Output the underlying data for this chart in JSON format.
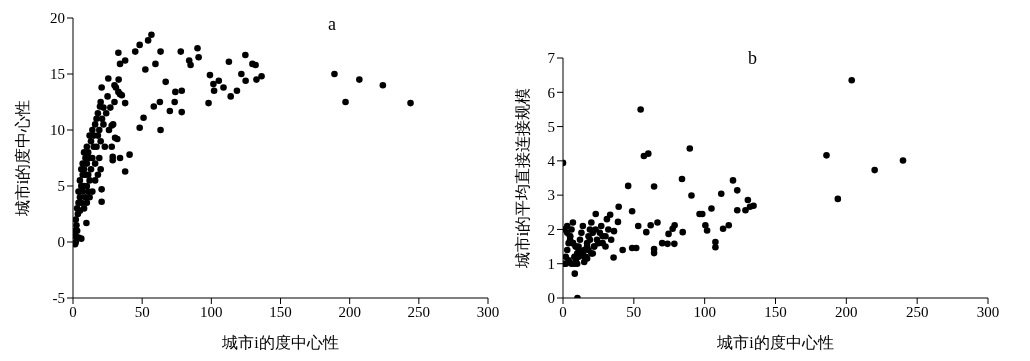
{
  "chart_data": [
    {
      "type": "scatter",
      "title": "a",
      "xlabel": "城市i的度中心性",
      "ylabel": "城市i的度中心性",
      "xlim": [
        0,
        300
      ],
      "xticks": [
        0,
        50,
        100,
        150,
        200,
        250,
        300
      ],
      "ylim": [
        -5,
        20
      ],
      "yticks": [
        -5,
        0,
        5,
        10,
        15,
        20
      ],
      "marker": "circle",
      "color": "#000000",
      "x": [
        189,
        207,
        224,
        197,
        244,
        56.7,
        54.3,
        48.2,
        45,
        32.8,
        63.3,
        77.9,
        90,
        90.8,
        84,
        85,
        59.6,
        52.3,
        37.7,
        34,
        112.7,
        124.6,
        129.7,
        132,
        121.7,
        124.8,
        132.6,
        136.3,
        99,
        101.5,
        105.4,
        108.8,
        102,
        114,
        118.5,
        98,
        67,
        74,
        78.6,
        73.5,
        78.6,
        70,
        62.8,
        58.4,
        51,
        48.2,
        63.3,
        37.7,
        40.9,
        37.7,
        34,
        28.7,
        28.7,
        30.4,
        28,
        35.3,
        32.8,
        30,
        25.5,
        20.7,
        19.5,
        20.7,
        20.7,
        9.7,
        1.5,
        2,
        4,
        6,
        1,
        2,
        2.5,
        3,
        3.5,
        4,
        4,
        5,
        5,
        5,
        6,
        6,
        6,
        7,
        7,
        7,
        8,
        8,
        8,
        9,
        9,
        9,
        10,
        10,
        10,
        11,
        11,
        11,
        12,
        12,
        12,
        13,
        13,
        14,
        14,
        15,
        15,
        16,
        16,
        17,
        17,
        18,
        18,
        19,
        19,
        20,
        20,
        21,
        22,
        22,
        23,
        24,
        25,
        26,
        27,
        28,
        29,
        30,
        32,
        33,
        31,
        34,
        8,
        10,
        12,
        14,
        16,
        18,
        20,
        3,
        2
      ],
      "values": [
        15.0,
        14.5,
        14.0,
        12.5,
        12.4,
        18.5,
        18.0,
        17.6,
        17.0,
        16.9,
        17.0,
        17.0,
        17.3,
        16.5,
        16.2,
        15.8,
        15.9,
        15.4,
        16.2,
        15.9,
        16.1,
        16.7,
        15.9,
        15.8,
        15.0,
        14.4,
        14.5,
        14.8,
        14.9,
        14.1,
        14.4,
        13.8,
        13.5,
        13.0,
        13.5,
        12.4,
        14.3,
        13.4,
        13.5,
        12.5,
        11.6,
        11.7,
        12.5,
        12.1,
        11.1,
        10.2,
        10.0,
        12.4,
        7.8,
        6.3,
        7.5,
        7.3,
        7.6,
        9.3,
        10.4,
        13.1,
        13.4,
        14.0,
        14.6,
        13.8,
        12.1,
        4.7,
        3.6,
        1.7,
        -0.2,
        0.5,
        0.4,
        0.3,
        1,
        2,
        1.5,
        3,
        2.5,
        3.5,
        4.5,
        2.8,
        4,
        5.5,
        3.5,
        5,
        6.5,
        4.5,
        6,
        7,
        5,
        6.5,
        8,
        4,
        6,
        7.5,
        5,
        7,
        8.5,
        4.5,
        6,
        8,
        5.5,
        7.5,
        9.5,
        6.5,
        9,
        7.5,
        10,
        8.5,
        9.5,
        7,
        10.5,
        8.5,
        11,
        9.5,
        11.5,
        7.5,
        10,
        9,
        12.5,
        11,
        10.5,
        12,
        8.5,
        11.5,
        13,
        10,
        12,
        8.5,
        10.5,
        12.5,
        9.2,
        14.5,
        13.8,
        13.2,
        3,
        3.5,
        4,
        4.5,
        5.5,
        6,
        6.5,
        1,
        0
      ]
    },
    {
      "type": "scatter",
      "title": "b",
      "xlabel": "城市i的度中心性",
      "ylabel": "城市i的平均直接连接规模",
      "xlim": [
        0,
        300
      ],
      "xticks": [
        0,
        50,
        100,
        150,
        200,
        250,
        300
      ],
      "ylim": [
        0,
        7
      ],
      "yticks": [
        0,
        1,
        2,
        3,
        4,
        5,
        6,
        7
      ],
      "marker": "circle",
      "color": "#000000",
      "x": [
        203.8,
        186,
        240,
        220,
        194,
        54.8,
        57.1,
        60.2,
        89.5,
        46,
        64.3,
        84,
        90.7,
        120,
        123,
        111.7,
        130.5,
        123,
        128.8,
        132,
        134.5,
        104.8,
        98.3,
        96.4,
        100.5,
        101.7,
        107.6,
        107.6,
        113,
        117,
        78.8,
        77.4,
        74.5,
        84.5,
        70,
        73.8,
        78.6,
        66.7,
        61.9,
        58.8,
        53.1,
        48.8,
        48.8,
        51.7,
        64.3,
        64.3,
        39.3,
        38.8,
        35.7,
        42.1,
        23.1,
        33.3,
        8.3,
        10.2,
        0,
        1,
        2,
        3,
        4,
        5,
        6,
        7,
        8,
        9,
        10,
        11,
        12,
        13,
        14,
        15,
        17,
        18,
        19,
        20,
        21,
        22,
        24,
        26,
        28,
        30,
        32,
        34,
        2,
        4,
        6,
        8,
        10,
        14,
        16,
        18,
        20,
        22,
        25,
        28,
        30,
        3,
        5,
        7,
        9,
        11,
        15,
        17,
        19,
        21,
        23,
        27,
        31,
        36,
        1,
        3,
        5,
        7,
        9,
        11,
        15,
        17
      ],
      "values": [
        6.35,
        4.16,
        4.01,
        3.73,
        2.89,
        5.5,
        4.14,
        4.21,
        4.36,
        3.27,
        3.25,
        3.47,
        2.99,
        3.43,
        3.14,
        3.04,
        2.86,
        2.56,
        2.56,
        2.66,
        2.69,
        2.61,
        2.45,
        2.45,
        2.12,
        1.97,
        1.63,
        1.48,
        2.02,
        2.12,
        2.12,
        2.02,
        1.87,
        1.92,
        1.6,
        1.58,
        1.58,
        2.2,
        2.12,
        1.92,
        2.1,
        2.53,
        1.46,
        1.46,
        1.43,
        1.31,
        2.66,
        2.22,
        1.18,
        1.4,
        2.45,
        2.43,
        0.71,
        0.0,
        3.94,
        1.0,
        1.2,
        1.4,
        1.6,
        1.8,
        2.0,
        2.2,
        1.0,
        1.1,
        1.3,
        1.5,
        1.7,
        1.9,
        2.1,
        1.2,
        1.6,
        1.8,
        2.0,
        2.2,
        1.3,
        1.5,
        1.7,
        1.9,
        1.6,
        1.8,
        2.0,
        1.7,
        1.0,
        1.1,
        1.0,
        1.2,
        1.0,
        1.3,
        1.2,
        1.4,
        1.3,
        1.5,
        1.6,
        1.8,
        1.5,
        1.9,
        1.7,
        1.6,
        1.5,
        1.4,
        1.4,
        1.5,
        1.7,
        1.9,
        2.0,
        2.1,
        2.3,
        1.95,
        2.0,
        2.1,
        1.8,
        1.6,
        1.5,
        1.2,
        1.05,
        1.15
      ]
    }
  ]
}
